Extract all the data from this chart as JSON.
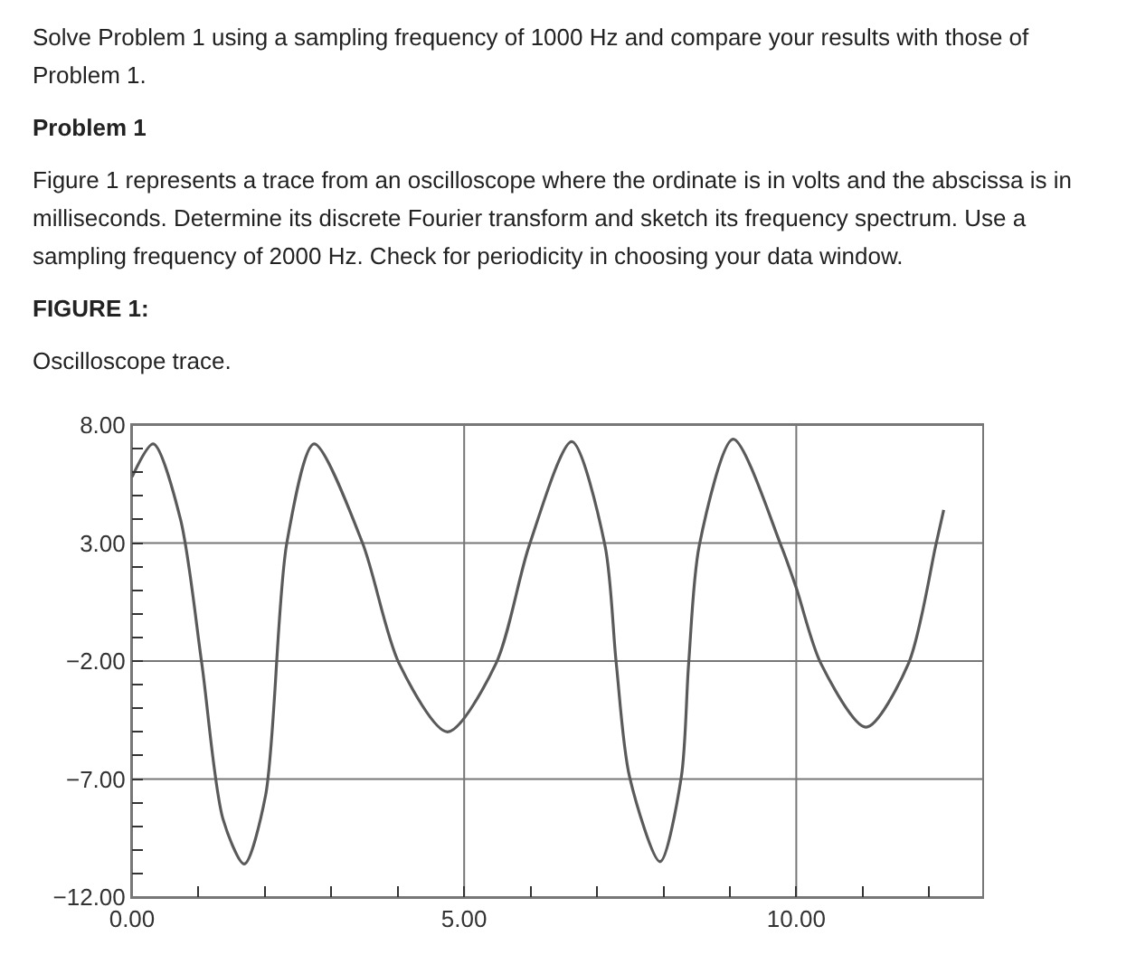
{
  "chart_data": {
    "type": "line",
    "title": "FIGURE 1:",
    "subtitle": "Oscilloscope trace.",
    "annotations": [
      "Solve Problem 1 using a sampling frequency of 1000 Hz and compare your results with those of Problem 1.",
      "Problem 1",
      "Figure 1 represents a trace from an oscilloscope where the ordinate is in volts and the abscissa is in milliseconds. Determine its discrete Fourier transform and sketch its frequency spectrum. Use a sampling frequency of 2000 Hz. Check for periodicity in choosing your data window."
    ],
    "series": [
      {
        "color": "#5a5a5a",
        "x": [
          0,
          0.32,
          0.73,
          1.05,
          1.37,
          1.69,
          2.01,
          2.33,
          2.74,
          3.47,
          4.02,
          4.75,
          5.48,
          5.98,
          6.62,
          7.12,
          7.29,
          7.49,
          7.95,
          8.27,
          8.38,
          8.54,
          9.05,
          9.77,
          10.0,
          10.37,
          11.05,
          11.69,
          12.1,
          12.22
        ],
        "values": [
          5.8,
          7.2,
          4.0,
          -2.1,
          -8.7,
          -10.6,
          -7.7,
          3.0,
          7.2,
          3.0,
          -2.1,
          -5.0,
          -2.1,
          2.9,
          7.3,
          2.9,
          -2.1,
          -6.9,
          -10.5,
          -6.9,
          -2.1,
          2.9,
          7.4,
          2.9,
          1.1,
          -2.1,
          -4.8,
          -2.1,
          2.9,
          4.4
        ]
      }
    ],
    "xlim": [
      0,
      12.8
    ],
    "ylim": [
      -12,
      8
    ],
    "xticks": [
      {
        "value": 0,
        "label": "0.00"
      },
      {
        "value": 1,
        "label": null
      },
      {
        "value": 2,
        "label": null
      },
      {
        "value": 3,
        "label": null
      },
      {
        "value": 4,
        "label": null
      },
      {
        "value": 5,
        "label": "5.00"
      },
      {
        "value": 6,
        "label": null
      },
      {
        "value": 7,
        "label": null
      },
      {
        "value": 8,
        "label": null
      },
      {
        "value": 9,
        "label": null
      },
      {
        "value": 10,
        "label": "10.00"
      },
      {
        "value": 11,
        "label": null
      },
      {
        "value": 12,
        "label": null
      }
    ],
    "yticks": [
      {
        "value": -12,
        "label": "−12.00"
      },
      {
        "value": -11,
        "label": null
      },
      {
        "value": -10,
        "label": null
      },
      {
        "value": -9,
        "label": null
      },
      {
        "value": -8,
        "label": null
      },
      {
        "value": -7,
        "label": "−7.00"
      },
      {
        "value": -6,
        "label": null
      },
      {
        "value": -5,
        "label": null
      },
      {
        "value": -4,
        "label": null
      },
      {
        "value": -3,
        "label": null
      },
      {
        "value": -2,
        "label": "−2.00"
      },
      {
        "value": -1,
        "label": null
      },
      {
        "value": 0,
        "label": null
      },
      {
        "value": 1,
        "label": null
      },
      {
        "value": 2,
        "label": null
      },
      {
        "value": 3,
        "label": "3.00"
      },
      {
        "value": 4,
        "label": null
      },
      {
        "value": 5,
        "label": null
      },
      {
        "value": 6,
        "label": null
      },
      {
        "value": 7,
        "label": null
      },
      {
        "value": 8,
        "label": "8.00"
      }
    ],
    "grid": true,
    "marker": "none",
    "line_style": "solid"
  }
}
